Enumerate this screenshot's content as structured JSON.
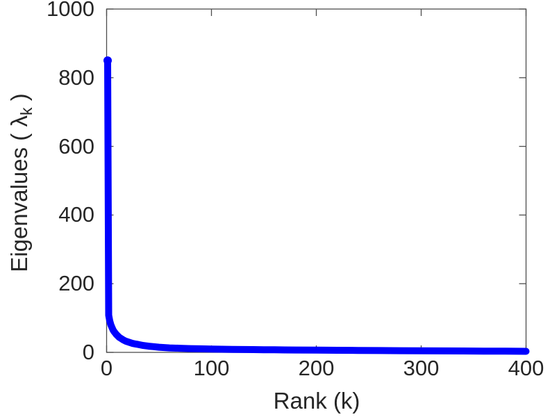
{
  "figure": {
    "background": "#ffffff",
    "text_color": "#262626",
    "axis_color": "#4d4d4d"
  },
  "chart_data": {
    "type": "line",
    "title": "",
    "xlabel": "Rank (k)",
    "ylabel": "Eigenvalues ( λk )",
    "ylabel_parts": {
      "prefix": "Eigenvalues ( ",
      "symbol": "λ",
      "subscript": "k",
      "suffix": " )"
    },
    "xlim": [
      0,
      400
    ],
    "ylim": [
      0,
      1000
    ],
    "xticks": [
      0,
      100,
      200,
      300,
      400
    ],
    "yticks": [
      0,
      200,
      400,
      600,
      800,
      1000
    ],
    "grid": false,
    "box": true,
    "tick_direction": "in",
    "legend": null,
    "axis_color": "#4d4d4d",
    "text_color": "#262626",
    "series": [
      {
        "name": "eigenvalues",
        "color": "#0000ff",
        "line_width": 10,
        "marker": "point",
        "marker_size": 12,
        "points": [
          [
            1,
            850
          ],
          [
            2,
            108
          ],
          [
            3,
            92
          ],
          [
            4,
            81
          ],
          [
            5,
            73
          ],
          [
            6,
            66
          ],
          [
            7,
            61
          ],
          [
            8,
            57
          ],
          [
            9,
            53
          ],
          [
            10,
            50
          ],
          [
            12,
            44
          ],
          [
            14,
            40
          ],
          [
            16,
            36
          ],
          [
            18,
            33
          ],
          [
            20,
            31
          ],
          [
            22,
            29
          ],
          [
            25,
            26
          ],
          [
            28,
            24
          ],
          [
            30,
            23
          ],
          [
            35,
            20
          ],
          [
            40,
            18
          ],
          [
            45,
            16.5
          ],
          [
            50,
            15
          ],
          [
            55,
            14
          ],
          [
            60,
            13
          ],
          [
            70,
            12
          ],
          [
            80,
            11
          ],
          [
            90,
            10.3
          ],
          [
            100,
            9.7
          ],
          [
            110,
            9.2
          ],
          [
            120,
            8.7
          ],
          [
            130,
            8.3
          ],
          [
            140,
            8.0
          ],
          [
            150,
            7.7
          ],
          [
            160,
            7.4
          ],
          [
            170,
            7.1
          ],
          [
            180,
            6.9
          ],
          [
            200,
            6.4
          ],
          [
            220,
            6.0
          ],
          [
            240,
            5.6
          ],
          [
            260,
            5.2
          ],
          [
            280,
            4.9
          ],
          [
            300,
            4.6
          ],
          [
            320,
            4.3
          ],
          [
            340,
            4.0
          ],
          [
            360,
            3.7
          ],
          [
            380,
            3.4
          ],
          [
            400,
            3.1
          ]
        ]
      }
    ]
  }
}
